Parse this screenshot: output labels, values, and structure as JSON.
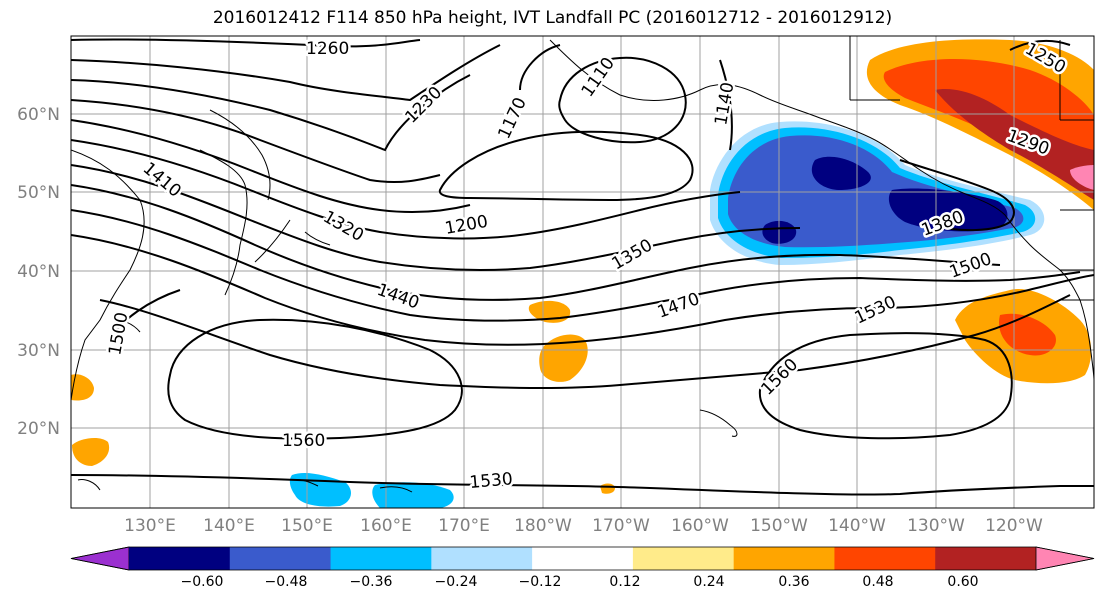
{
  "title": "2016012412 F114 850 hPa height, IVT Landfall PC (2016012712 - 2016012912)",
  "map": {
    "lat_labels": [
      "60°N",
      "50°N",
      "40°N",
      "30°N",
      "20°N"
    ],
    "lon_labels": [
      "130°E",
      "140°E",
      "150°E",
      "160°E",
      "170°E",
      "180°W",
      "170°W",
      "160°W",
      "150°W",
      "140°W",
      "130°W",
      "120°W"
    ],
    "contour_labels": [
      "1260",
      "1230",
      "1170",
      "1110",
      "1140",
      "1250",
      "1290",
      "1410",
      "1320",
      "1200",
      "1350",
      "1380",
      "1500",
      "1440",
      "1470",
      "1530",
      "1500",
      "1560",
      "1560",
      "1530"
    ]
  },
  "colorbar": {
    "ticks": [
      "−0.60",
      "−0.48",
      "−0.36",
      "−0.24",
      "−0.12",
      "0.12",
      "0.24",
      "0.36",
      "0.48",
      "0.60"
    ],
    "colors": [
      "#9b30d0",
      "#000080",
      "#3a5bcc",
      "#00bfff",
      "#b0e0ff",
      "#ffffff",
      "#ffeb8a",
      "#ffa500",
      "#ff4500",
      "#b22222",
      "#ff85b3"
    ]
  }
}
